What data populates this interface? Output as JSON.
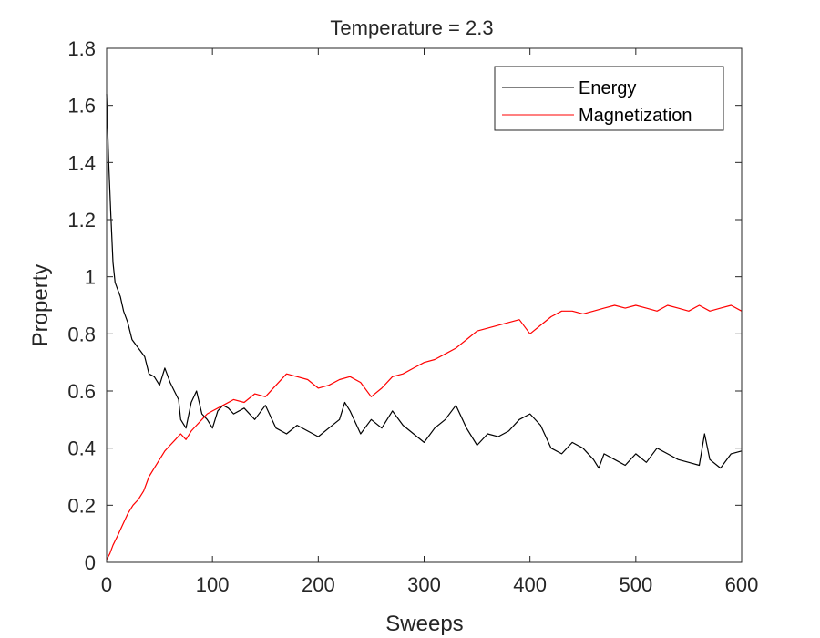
{
  "chart_data": {
    "type": "line",
    "title": "Temperature = 2.3",
    "xlabel": "Sweeps",
    "ylabel": "Property",
    "xlim": [
      0,
      600
    ],
    "ylim": [
      0,
      1.8
    ],
    "xticks": [
      0,
      100,
      200,
      300,
      400,
      500,
      600
    ],
    "xtick_labels": [
      "0",
      "100",
      "200",
      "300",
      "400",
      "500",
      "600"
    ],
    "yticks": [
      0,
      0.2,
      0.4,
      0.6,
      0.8,
      1,
      1.2,
      1.4,
      1.6,
      1.8
    ],
    "ytick_labels": [
      "0",
      "0.2",
      "0.4",
      "0.6",
      "0.8",
      "1",
      "1.2",
      "1.4",
      "1.6",
      "1.8"
    ],
    "grid": false,
    "legend_position": "top-right",
    "series": [
      {
        "name": "Energy",
        "color": "#000000",
        "x": [
          0,
          2,
          4,
          6,
          8,
          10,
          13,
          16,
          20,
          24,
          28,
          32,
          36,
          40,
          45,
          50,
          55,
          60,
          64,
          68,
          70,
          75,
          80,
          85,
          90,
          95,
          100,
          105,
          110,
          115,
          120,
          130,
          140,
          150,
          160,
          170,
          180,
          190,
          200,
          210,
          220,
          225,
          230,
          240,
          250,
          260,
          270,
          280,
          290,
          300,
          310,
          320,
          330,
          340,
          350,
          360,
          370,
          380,
          390,
          400,
          410,
          420,
          430,
          440,
          450,
          460,
          465,
          470,
          480,
          490,
          500,
          510,
          520,
          530,
          540,
          550,
          560,
          565,
          570,
          580,
          590,
          600
        ],
        "y": [
          1.64,
          1.4,
          1.22,
          1.05,
          0.98,
          0.96,
          0.93,
          0.88,
          0.84,
          0.78,
          0.76,
          0.74,
          0.72,
          0.66,
          0.65,
          0.62,
          0.68,
          0.63,
          0.6,
          0.57,
          0.5,
          0.47,
          0.56,
          0.6,
          0.52,
          0.5,
          0.47,
          0.53,
          0.55,
          0.54,
          0.52,
          0.54,
          0.5,
          0.55,
          0.47,
          0.45,
          0.48,
          0.46,
          0.44,
          0.47,
          0.5,
          0.56,
          0.53,
          0.45,
          0.5,
          0.47,
          0.53,
          0.48,
          0.45,
          0.42,
          0.47,
          0.5,
          0.55,
          0.47,
          0.41,
          0.45,
          0.44,
          0.46,
          0.5,
          0.52,
          0.48,
          0.4,
          0.38,
          0.42,
          0.4,
          0.36,
          0.33,
          0.38,
          0.36,
          0.34,
          0.38,
          0.35,
          0.4,
          0.38,
          0.36,
          0.35,
          0.34,
          0.45,
          0.36,
          0.33,
          0.38,
          0.39
        ]
      },
      {
        "name": "Magnetization",
        "color": "#ff0000",
        "x": [
          0,
          3,
          6,
          10,
          15,
          20,
          25,
          30,
          35,
          40,
          45,
          50,
          55,
          60,
          65,
          70,
          75,
          80,
          85,
          90,
          95,
          100,
          105,
          110,
          120,
          130,
          140,
          150,
          160,
          170,
          180,
          190,
          200,
          210,
          220,
          230,
          240,
          250,
          260,
          270,
          280,
          290,
          300,
          310,
          320,
          330,
          340,
          350,
          360,
          370,
          380,
          390,
          400,
          410,
          420,
          430,
          440,
          450,
          460,
          470,
          480,
          490,
          500,
          510,
          520,
          530,
          540,
          550,
          560,
          570,
          580,
          590,
          600
        ],
        "y": [
          0.01,
          0.03,
          0.06,
          0.09,
          0.13,
          0.17,
          0.2,
          0.22,
          0.25,
          0.3,
          0.33,
          0.36,
          0.39,
          0.41,
          0.43,
          0.45,
          0.43,
          0.46,
          0.48,
          0.5,
          0.52,
          0.53,
          0.54,
          0.55,
          0.57,
          0.56,
          0.59,
          0.58,
          0.62,
          0.66,
          0.65,
          0.64,
          0.61,
          0.62,
          0.64,
          0.65,
          0.63,
          0.58,
          0.61,
          0.65,
          0.66,
          0.68,
          0.7,
          0.71,
          0.73,
          0.75,
          0.78,
          0.81,
          0.82,
          0.83,
          0.84,
          0.85,
          0.8,
          0.83,
          0.86,
          0.88,
          0.88,
          0.87,
          0.88,
          0.89,
          0.9,
          0.89,
          0.9,
          0.89,
          0.88,
          0.9,
          0.89,
          0.88,
          0.9,
          0.88,
          0.89,
          0.9,
          0.88
        ]
      }
    ]
  }
}
